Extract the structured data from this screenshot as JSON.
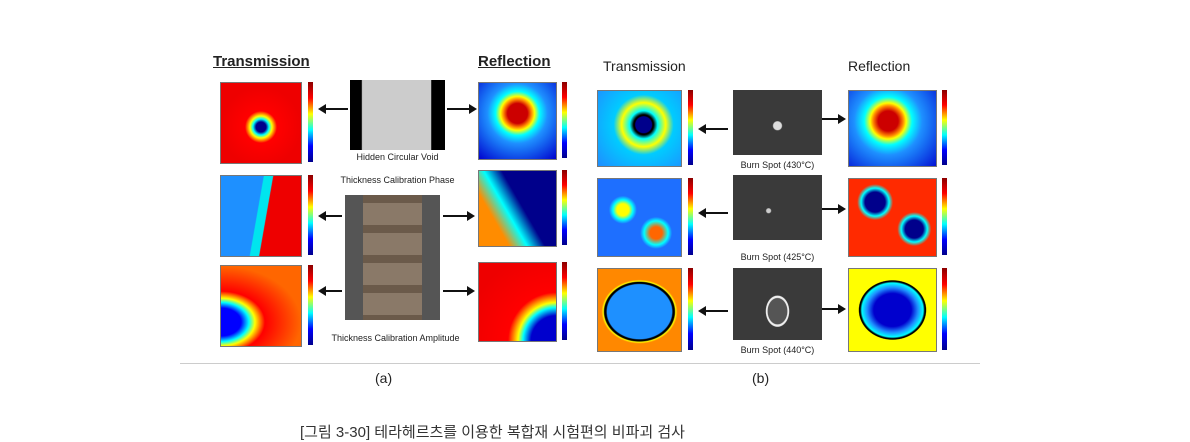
{
  "panel_a": {
    "transmission_title": "Transmission",
    "reflection_title": "Reflection",
    "image_captions": [
      "Hidden Circular Void",
      "Thickness Calibration Phase",
      "Thickness Calibration Amplitude"
    ],
    "label": "(a)"
  },
  "panel_b": {
    "transmission_title": "Transmission",
    "reflection_title": "Reflection",
    "image_captions": [
      "Burn Spot (430°C)",
      "Burn Spot (425°C)",
      "Burn Spot (440°C)"
    ],
    "label": "(b)"
  },
  "caption": "[그림 3-30] 테라헤르츠를 이용한 복합재 시험편의 비파괴 검사"
}
